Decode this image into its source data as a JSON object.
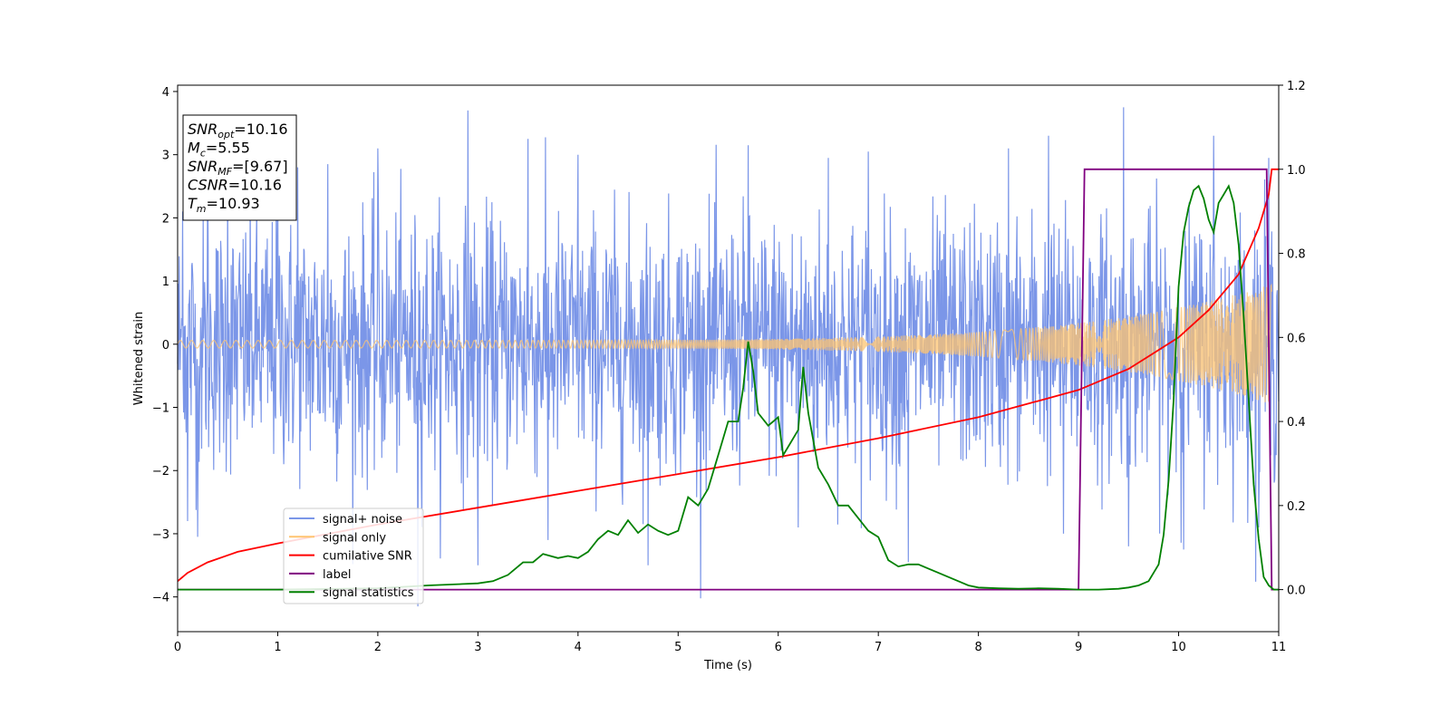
{
  "chart_data": {
    "type": "line",
    "title": "",
    "xlabel": "Time (s)",
    "ylabel": "Whitened strain",
    "xlim": [
      0,
      11
    ],
    "ylim_left": [
      -4.55,
      4.1
    ],
    "ylim_right": [
      -0.1,
      1.2
    ],
    "x_ticks": [
      0,
      1,
      2,
      3,
      4,
      5,
      6,
      7,
      8,
      9,
      10,
      11
    ],
    "y_ticks_left": [
      -4,
      -3,
      -2,
      -1,
      0,
      1,
      2,
      3,
      4
    ],
    "y_ticks_right": [
      0.0,
      0.2,
      0.4,
      0.6,
      0.8,
      1.0,
      1.2
    ],
    "y_tick_labels_left": [
      "−4",
      "−3",
      "−2",
      "−1",
      "0",
      "1",
      "2",
      "3",
      "4"
    ],
    "y_tick_labels_right": [
      "0.0",
      "0.2",
      "0.4",
      "0.6",
      "0.8",
      "1.0",
      "1.2"
    ],
    "grid": false,
    "legend_position": "lower-left",
    "annotation": {
      "lines": [
        {
          "base": "SNR",
          "sub": "opt",
          "value": "=10.16"
        },
        {
          "base": "M",
          "sub": "c",
          "value": "=5.55"
        },
        {
          "base": "SNR",
          "sub": "MF",
          "value": "=[9.67]"
        },
        {
          "base": "CSNR",
          "sub": "",
          "value": "=10.16"
        },
        {
          "base": "T",
          "sub": "m",
          "value": "=10.93"
        }
      ]
    },
    "series": [
      {
        "name": "signal+ noise",
        "axis": "left",
        "color": "#7b96e8",
        "noise_sigma": 1.0,
        "spikes": [
          [
            0.05,
            2.1
          ],
          [
            0.1,
            -2.8
          ],
          [
            0.2,
            -3.05
          ],
          [
            0.3,
            2.7
          ],
          [
            0.5,
            2.7
          ],
          [
            1.0,
            2.6
          ],
          [
            1.2,
            2.8
          ],
          [
            1.5,
            2.85
          ],
          [
            2.0,
            3.1
          ],
          [
            2.4,
            -4.15
          ],
          [
            2.9,
            3.7
          ],
          [
            3.0,
            -3.5
          ],
          [
            3.5,
            3.25
          ],
          [
            3.7,
            -3.1
          ],
          [
            4.7,
            -3.5
          ],
          [
            5.7,
            3.15
          ],
          [
            6.2,
            -2.9
          ],
          [
            6.9,
            3.05
          ],
          [
            7.3,
            -3.45
          ],
          [
            8.3,
            3.1
          ],
          [
            8.7,
            3.3
          ],
          [
            9.45,
            3.75
          ],
          [
            9.5,
            -3.2
          ],
          [
            10.05,
            -3.25
          ],
          [
            10.35,
            3.3
          ],
          [
            10.8,
            -2.9
          ],
          [
            10.9,
            2.95
          ],
          [
            8.85,
            -3.0
          ],
          [
            6.5,
            2.95
          ],
          [
            4.0,
            3.0
          ]
        ]
      },
      {
        "name": "signal only",
        "axis": "left",
        "color": "#ffc470",
        "amplitude_start": 0.06,
        "amplitude_end": 0.95
      },
      {
        "name": "cumilative SNR",
        "axis": "right",
        "color": "#ff0000",
        "x": [
          0,
          0.1,
          0.3,
          0.6,
          1,
          2,
          3,
          4,
          5,
          6,
          7,
          8,
          9,
          9.5,
          10,
          10.3,
          10.6,
          10.8,
          10.9,
          10.93,
          11
        ],
        "y": [
          0.02,
          0.04,
          0.065,
          0.09,
          0.11,
          0.155,
          0.195,
          0.235,
          0.275,
          0.315,
          0.36,
          0.41,
          0.475,
          0.525,
          0.6,
          0.665,
          0.75,
          0.86,
          0.94,
          1.0,
          1.0
        ]
      },
      {
        "name": "label",
        "axis": "right",
        "color": "#800080",
        "x": [
          0,
          9.0,
          9.06,
          10.88,
          10.93,
          11
        ],
        "y": [
          0,
          0,
          1,
          1,
          0,
          0
        ]
      },
      {
        "name": "signal statistics",
        "axis": "right",
        "color": "#008000",
        "x": [
          0,
          1.0,
          2.0,
          2.5,
          3.0,
          3.15,
          3.3,
          3.45,
          3.55,
          3.65,
          3.8,
          3.9,
          4.0,
          4.1,
          4.2,
          4.3,
          4.4,
          4.5,
          4.6,
          4.7,
          4.8,
          4.9,
          5.0,
          5.1,
          5.2,
          5.3,
          5.4,
          5.5,
          5.6,
          5.65,
          5.7,
          5.75,
          5.8,
          5.9,
          6.0,
          6.05,
          6.1,
          6.2,
          6.25,
          6.3,
          6.4,
          6.5,
          6.6,
          6.7,
          6.8,
          6.9,
          7.0,
          7.1,
          7.2,
          7.3,
          7.4,
          7.5,
          7.6,
          7.7,
          7.8,
          7.9,
          8.0,
          8.2,
          8.4,
          8.6,
          8.8,
          9.0,
          9.2,
          9.4,
          9.5,
          9.6,
          9.7,
          9.8,
          9.85,
          9.9,
          9.95,
          10.0,
          10.05,
          10.1,
          10.15,
          10.2,
          10.25,
          10.3,
          10.35,
          10.4,
          10.45,
          10.5,
          10.55,
          10.6,
          10.65,
          10.7,
          10.75,
          10.8,
          10.85,
          10.9,
          10.95,
          11.0
        ],
        "y": [
          0.0,
          0.0,
          0.003,
          0.01,
          0.015,
          0.02,
          0.035,
          0.065,
          0.065,
          0.085,
          0.075,
          0.08,
          0.075,
          0.09,
          0.12,
          0.14,
          0.13,
          0.165,
          0.135,
          0.155,
          0.14,
          0.13,
          0.14,
          0.22,
          0.2,
          0.24,
          0.32,
          0.4,
          0.4,
          0.48,
          0.59,
          0.52,
          0.42,
          0.39,
          0.41,
          0.32,
          0.34,
          0.38,
          0.53,
          0.42,
          0.29,
          0.25,
          0.2,
          0.2,
          0.17,
          0.14,
          0.125,
          0.07,
          0.055,
          0.06,
          0.06,
          0.05,
          0.04,
          0.03,
          0.02,
          0.01,
          0.005,
          0.003,
          0.002,
          0.003,
          0.002,
          0.0,
          0.0,
          0.002,
          0.005,
          0.01,
          0.02,
          0.06,
          0.13,
          0.26,
          0.45,
          0.72,
          0.85,
          0.91,
          0.95,
          0.96,
          0.93,
          0.88,
          0.85,
          0.92,
          0.94,
          0.96,
          0.92,
          0.82,
          0.65,
          0.45,
          0.25,
          0.12,
          0.03,
          0.01,
          0.0,
          0.0
        ]
      }
    ]
  }
}
